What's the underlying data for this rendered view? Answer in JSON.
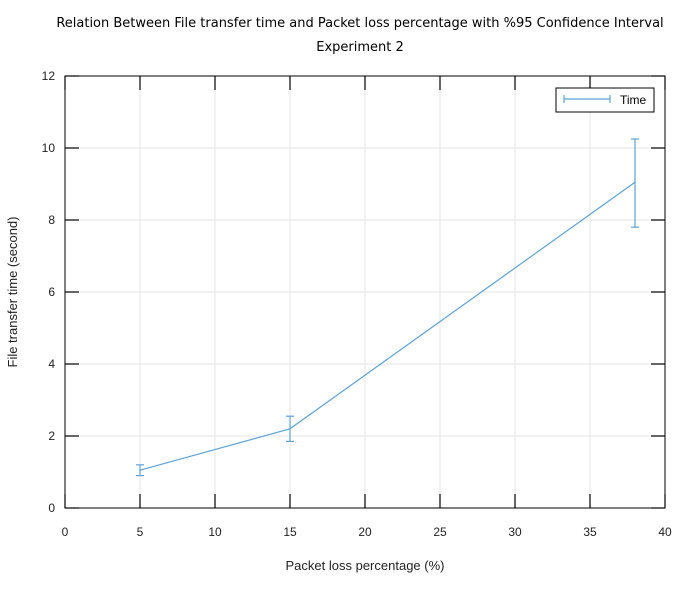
{
  "chart_data": {
    "type": "line",
    "title": "Relation Between File transfer time and Packet loss percentage with %95 Confidence Interval",
    "subtitle": "Experiment 2",
    "xlabel": "Packet loss percentage (%)",
    "ylabel": "File transfer time (second)",
    "xlim": [
      0,
      40
    ],
    "ylim": [
      0,
      12
    ],
    "xticks": [
      "0",
      "5",
      "10",
      "15",
      "20",
      "25",
      "30",
      "35",
      "40"
    ],
    "yticks": [
      "0",
      "2",
      "4",
      "6",
      "8",
      "10",
      "12"
    ],
    "grid": true,
    "legend_position": "top-right",
    "series": [
      {
        "name": "Time",
        "color": "#5ca3d8",
        "x": [
          5,
          15,
          38
        ],
        "y": [
          1.05,
          2.2,
          9.05
        ],
        "error_low": [
          0.9,
          1.85,
          7.8
        ],
        "error_high": [
          1.2,
          2.55,
          10.25
        ]
      }
    ]
  }
}
